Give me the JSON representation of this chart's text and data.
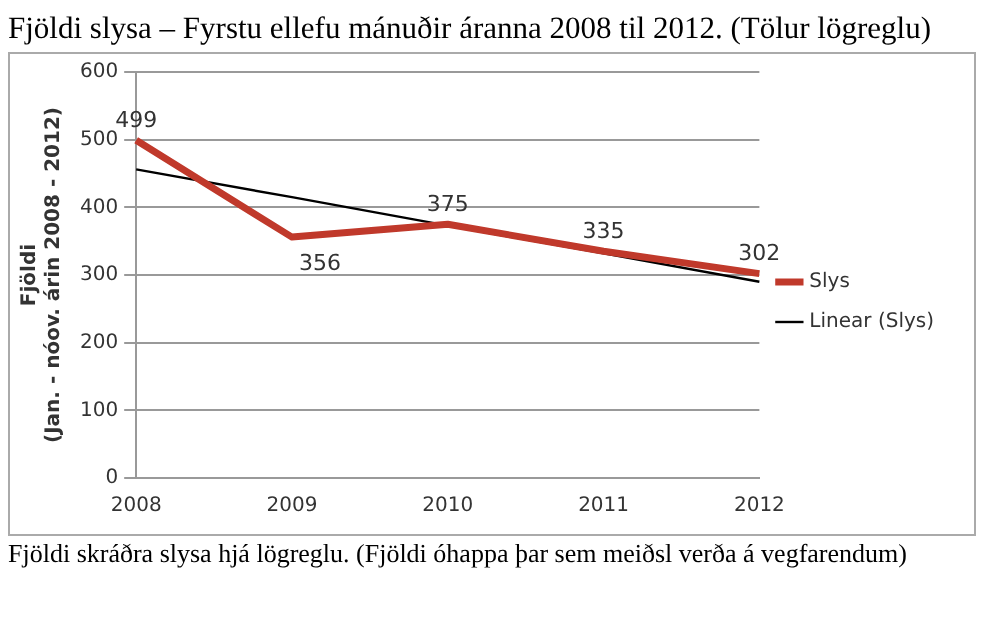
{
  "chart_data": {
    "type": "line",
    "title": "Fjöldi slysa – Fyrstu ellefu mánuðir áranna 2008 til 2012. (Tölur lögreglu)",
    "ylabel": "Fjöldi\n(Jan. - nóov. árin 2008 - 2012)",
    "categories": [
      "2008",
      "2009",
      "2010",
      "2011",
      "2012"
    ],
    "series": [
      {
        "name": "Slys",
        "color": "#c0392b",
        "values": [
          499,
          356,
          375,
          335,
          302
        ],
        "value_labels": [
          "499",
          "356",
          "375",
          "335",
          "302"
        ]
      },
      {
        "name": "Linear (Slys)",
        "type": "line",
        "color": "#000000",
        "values": [
          456,
          415,
          373,
          332,
          290
        ]
      }
    ],
    "ylim": [
      0,
      600
    ],
    "yticks": [
      0,
      100,
      200,
      300,
      400,
      500,
      600
    ],
    "grid": "y",
    "legend": "right",
    "marker": "none",
    "line_style": "solid",
    "annotations": [
      "Fjöldi skráðra slysa hjá lögreglu. (Fjöldi óhappa þar sem meiðsl verða á vegfarendum)"
    ]
  }
}
